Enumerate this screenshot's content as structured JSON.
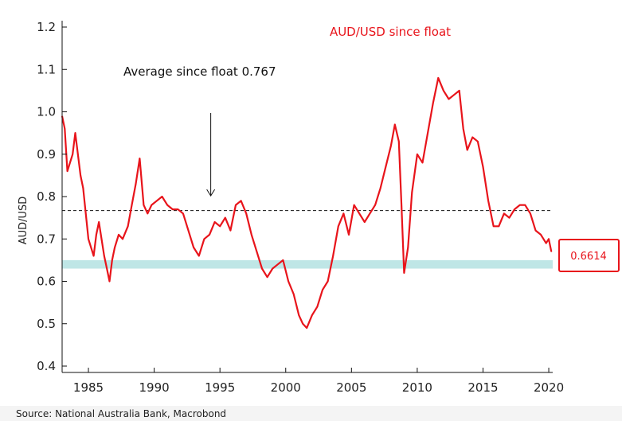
{
  "chart_data": {
    "type": "line",
    "title": "AUD/USD since float",
    "ylabel": "AUD/USD",
    "xlabel": "",
    "xlim": [
      1983,
      2020.3
    ],
    "ylim": [
      0.4,
      1.2
    ],
    "yticks": [
      "0.4",
      "0.5",
      "0.6",
      "0.7",
      "0.8",
      "0.9",
      "1.0",
      "1.1",
      "1.2"
    ],
    "xticks": [
      "1985",
      "1990",
      "1995",
      "2000",
      "2005",
      "2010",
      "2015",
      "2020"
    ],
    "series": [
      {
        "color": "#e8141b",
        "x": [
          1983.0,
          1983.2,
          1983.4,
          1983.6,
          1983.8,
          1984.0,
          1984.2,
          1984.4,
          1984.6,
          1984.8,
          1985.0,
          1985.2,
          1985.4,
          1985.6,
          1985.8,
          1986.0,
          1986.2,
          1986.4,
          1986.6,
          1986.8,
          1987.0,
          1987.3,
          1987.6,
          1988.0,
          1988.3,
          1988.6,
          1988.9,
          1989.2,
          1989.5,
          1989.8,
          1990.2,
          1990.6,
          1991.0,
          1991.4,
          1991.8,
          1992.2,
          1992.6,
          1993.0,
          1993.4,
          1993.8,
          1994.2,
          1994.6,
          1995.0,
          1995.4,
          1995.8,
          1996.2,
          1996.6,
          1997.0,
          1997.4,
          1997.8,
          1998.2,
          1998.6,
          1999.0,
          1999.4,
          1999.8,
          2000.2,
          2000.6,
          2001.0,
          2001.3,
          2001.6,
          2002.0,
          2002.4,
          2002.8,
          2003.2,
          2003.6,
          2004.0,
          2004.4,
          2004.8,
          2005.2,
          2005.6,
          2006.0,
          2006.4,
          2006.8,
          2007.2,
          2007.6,
          2008.0,
          2008.3,
          2008.6,
          2008.8,
          2009.0,
          2009.3,
          2009.6,
          2010.0,
          2010.4,
          2010.8,
          2011.2,
          2011.6,
          2012.0,
          2012.4,
          2012.8,
          2013.2,
          2013.5,
          2013.8,
          2014.2,
          2014.6,
          2015.0,
          2015.4,
          2015.8,
          2016.2,
          2016.6,
          2017.0,
          2017.4,
          2017.8,
          2018.2,
          2018.6,
          2019.0,
          2019.4,
          2019.8,
          2020.0,
          2020.2
        ],
        "values": [
          0.99,
          0.96,
          0.86,
          0.88,
          0.9,
          0.95,
          0.9,
          0.85,
          0.82,
          0.76,
          0.7,
          0.68,
          0.66,
          0.71,
          0.74,
          0.7,
          0.66,
          0.63,
          0.6,
          0.65,
          0.68,
          0.71,
          0.7,
          0.73,
          0.78,
          0.83,
          0.89,
          0.78,
          0.76,
          0.78,
          0.79,
          0.8,
          0.78,
          0.77,
          0.77,
          0.76,
          0.72,
          0.68,
          0.66,
          0.7,
          0.71,
          0.74,
          0.73,
          0.75,
          0.72,
          0.78,
          0.79,
          0.76,
          0.71,
          0.67,
          0.63,
          0.61,
          0.63,
          0.64,
          0.65,
          0.6,
          0.57,
          0.52,
          0.5,
          0.49,
          0.52,
          0.54,
          0.58,
          0.6,
          0.66,
          0.73,
          0.76,
          0.71,
          0.78,
          0.76,
          0.74,
          0.76,
          0.78,
          0.82,
          0.87,
          0.92,
          0.97,
          0.93,
          0.78,
          0.62,
          0.68,
          0.81,
          0.9,
          0.88,
          0.95,
          1.02,
          1.08,
          1.05,
          1.03,
          1.04,
          1.05,
          0.96,
          0.91,
          0.94,
          0.93,
          0.87,
          0.79,
          0.73,
          0.73,
          0.76,
          0.75,
          0.77,
          0.78,
          0.78,
          0.76,
          0.72,
          0.71,
          0.69,
          0.7,
          0.67
        ]
      }
    ],
    "reference_lines": [
      {
        "label": "Average since float 0.767",
        "y": 0.767,
        "style": "dashed"
      }
    ],
    "highlight_band": {
      "y": [
        0.63,
        0.65
      ],
      "color": "#bfe6e6"
    },
    "arrow_annotation": {
      "text": "Average since float 0.767",
      "points_to_x": 1994.3
    },
    "callout": {
      "text": "0.6614",
      "color": "#e8141b"
    },
    "source": "Source: National Australia Bank, Macrobond",
    "grid": false,
    "legend": "none"
  }
}
